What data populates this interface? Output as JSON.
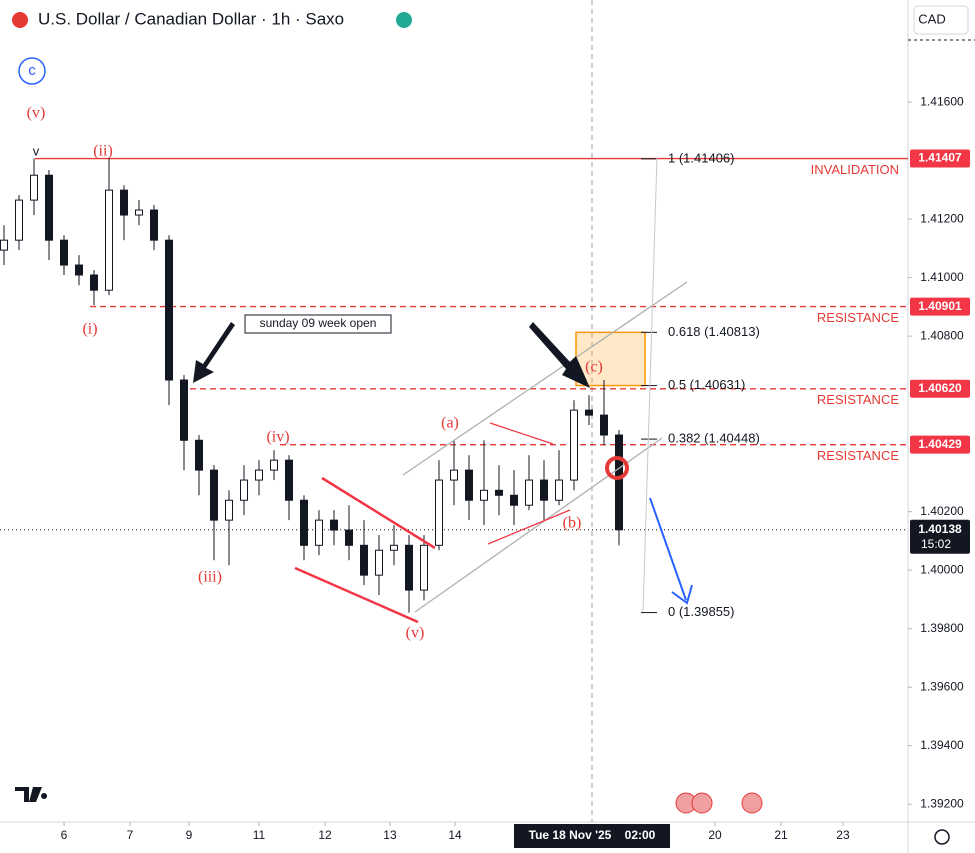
{
  "chart_data": {
    "type": "candlestick",
    "title": "U.S. Dollar / Canadian Dollar · 1h · Saxo",
    "currency": "CAD",
    "wave_marker": "c",
    "categories": [
      null,
      null,
      null,
      null,
      null,
      null,
      null,
      null,
      null,
      null,
      null,
      null,
      null,
      null,
      null,
      null,
      null,
      null,
      null,
      null,
      null,
      null,
      null,
      null,
      null,
      null,
      null,
      null,
      null,
      null,
      null,
      null,
      null,
      null,
      null,
      null,
      null,
      null,
      null,
      null,
      null,
      null
    ],
    "open": [
      1.41094,
      1.41128,
      1.41265,
      1.4135,
      1.41128,
      1.41043,
      1.41009,
      1.40957,
      1.41299,
      1.41214,
      1.41231,
      1.41128,
      1.4065,
      1.40444,
      1.40342,
      1.40171,
      1.40239,
      1.40308,
      1.40342,
      1.40376,
      1.40239,
      1.40085,
      1.40171,
      1.40137,
      1.40085,
      1.39983,
      1.40068,
      1.40085,
      1.39932,
      1.40085,
      1.40308,
      1.40342,
      1.40239,
      1.40273,
      1.40256,
      1.40222,
      1.40308,
      1.40239,
      1.40308,
      1.40547,
      1.4053,
      1.40462
    ],
    "high": [
      1.41179,
      1.41282,
      1.41407,
      1.41368,
      1.41145,
      1.41077,
      1.41026,
      1.41409,
      1.41316,
      1.41265,
      1.41248,
      1.41145,
      1.40667,
      1.40462,
      1.40359,
      1.40273,
      1.40359,
      1.40376,
      1.4041,
      1.40393,
      1.40256,
      1.40205,
      1.40205,
      1.40222,
      1.40171,
      1.4012,
      1.40154,
      1.4012,
      1.4012,
      1.40376,
      1.40444,
      1.40393,
      1.40444,
      1.40359,
      1.40342,
      1.40393,
      1.40376,
      1.4041,
      1.40581,
      1.40598,
      1.4065,
      1.40479
    ],
    "low": [
      1.41043,
      1.41094,
      1.41214,
      1.4106,
      1.41009,
      1.40974,
      1.40906,
      1.4094,
      1.41128,
      1.41179,
      1.41094,
      1.40564,
      1.40342,
      1.40256,
      1.40034,
      1.40017,
      1.40188,
      1.40256,
      1.40308,
      1.40171,
      1.40034,
      1.40051,
      1.40085,
      1.40034,
      1.39949,
      1.39915,
      1.40017,
      1.39855,
      1.39897,
      1.40068,
      1.40222,
      1.40171,
      1.40154,
      1.40188,
      1.40154,
      1.40205,
      1.40171,
      1.40222,
      1.40273,
      1.40496,
      1.40427,
      1.40085
    ],
    "close": [
      1.41128,
      1.41265,
      1.4135,
      1.41128,
      1.41043,
      1.41009,
      1.40957,
      1.41299,
      1.41214,
      1.41231,
      1.41128,
      1.4065,
      1.40444,
      1.40342,
      1.40171,
      1.40239,
      1.40308,
      1.40342,
      1.40376,
      1.40239,
      1.40085,
      1.40171,
      1.40137,
      1.40085,
      1.39983,
      1.40068,
      1.40085,
      1.39932,
      1.40085,
      1.40308,
      1.40342,
      1.40239,
      1.40273,
      1.40256,
      1.40222,
      1.40308,
      1.40239,
      1.40308,
      1.40547,
      1.4053,
      1.40462,
      1.40138
    ],
    "xlim": [
      -0.267,
      60.267
    ],
    "ylim": [
      1.39146,
      1.41949
    ],
    "xticks": [
      {
        "value": 4.0,
        "label": "6"
      },
      {
        "value": 8.4,
        "label": "7"
      },
      {
        "value": 12.33,
        "label": "9"
      },
      {
        "value": 17.0,
        "label": "11"
      },
      {
        "value": 21.4,
        "label": "12"
      },
      {
        "value": 25.73,
        "label": "13"
      },
      {
        "value": 30.07,
        "label": "14"
      },
      {
        "value": 47.4,
        "label": "20"
      },
      {
        "value": 51.8,
        "label": "21"
      },
      {
        "value": 55.93,
        "label": "23"
      }
    ],
    "yticks": [
      {
        "value": 1.416,
        "label": "1.41600"
      },
      {
        "value": 1.412,
        "label": "1.41200"
      },
      {
        "value": 1.41,
        "label": "1.41000"
      },
      {
        "value": 1.408,
        "label": "1.40800"
      },
      {
        "value": 1.402,
        "label": "1.40200"
      },
      {
        "value": 1.4,
        "label": "1.40000"
      },
      {
        "value": 1.398,
        "label": "1.39800"
      },
      {
        "value": 1.396,
        "label": "1.39600"
      },
      {
        "value": 1.394,
        "label": "1.39400"
      },
      {
        "value": 1.392,
        "label": "1.39200"
      }
    ],
    "levels": [
      {
        "value": 1.41407,
        "label": "1.41407",
        "text": "INVALIDATION"
      },
      {
        "value": 1.40901,
        "label": "1.40901",
        "text": "RESISTANCE"
      },
      {
        "value": 1.4062,
        "label": "1.40620",
        "text": "RESISTANCE"
      },
      {
        "value": 1.40429,
        "label": "1.40429",
        "text": "RESISTANCE"
      }
    ],
    "last_price": {
      "value": 1.40138,
      "label": "1.40138",
      "countdown": "15:02"
    },
    "fib_levels": [
      {
        "value": 1.41406,
        "label": "1 (1.41406)"
      },
      {
        "value": 1.40813,
        "label": "0.618 (1.40813)"
      },
      {
        "value": 1.40631,
        "label": "0.5 (1.40631)"
      },
      {
        "value": 1.40448,
        "label": "0.382 (1.40448)"
      },
      {
        "value": 1.39855,
        "label": "0 (1.39855)"
      }
    ],
    "crosshair": {
      "value": 39.2,
      "date": "Tue 18 Nov '25",
      "time": "02:00"
    },
    "note": "sunday 09 week open",
    "waves": [
      "(v)",
      "v",
      "(ii)",
      "(i)",
      "(iii)",
      "(iv)",
      "(v)",
      "(a)",
      "(b)",
      "(c)"
    ]
  }
}
